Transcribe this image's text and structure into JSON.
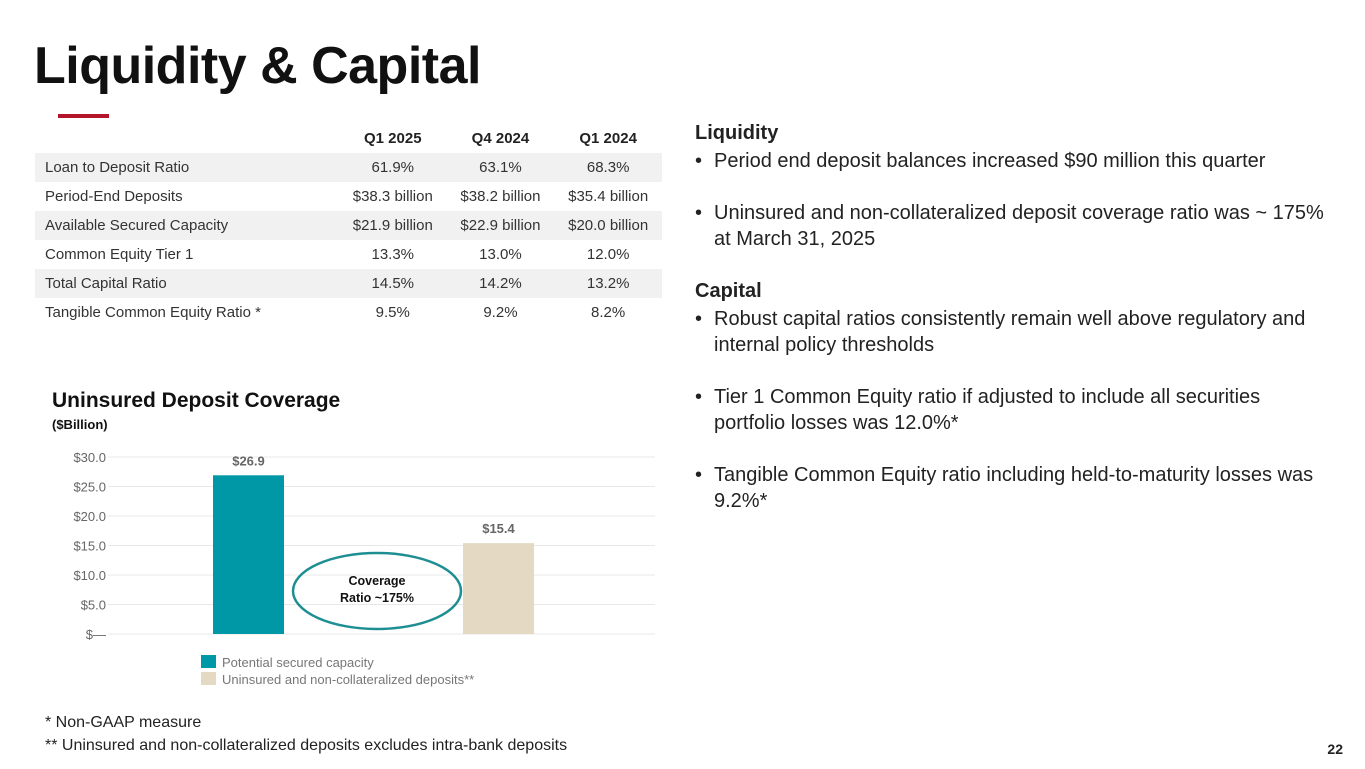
{
  "title": "Liquidity & Capital",
  "table": {
    "headers": [
      "",
      "Q1 2025",
      "Q4 2024",
      "Q1 2024"
    ],
    "rows": [
      [
        "Loan to Deposit Ratio",
        "61.9%",
        "63.1%",
        "68.3%"
      ],
      [
        "Period-End Deposits",
        "$38.3 billion",
        "$38.2 billion",
        "$35.4 billion"
      ],
      [
        "Available Secured Capacity",
        "$21.9 billion",
        "$22.9 billion",
        "$20.0 billion"
      ],
      [
        "Common Equity Tier 1",
        "13.3%",
        "13.0%",
        "12.0%"
      ],
      [
        "Total Capital Ratio",
        "14.5%",
        "14.2%",
        "13.2%"
      ],
      [
        "Tangible Common Equity Ratio *",
        "9.5%",
        "9.2%",
        "8.2%"
      ]
    ]
  },
  "right": {
    "liquidity_heading": "Liquidity",
    "liquidity_bullets": [
      "Period end deposit balances increased $90 million this quarter",
      "Uninsured and non-collateralized deposit coverage ratio was ~ 175% at March 31, 2025"
    ],
    "capital_heading": "Capital",
    "capital_bullets": [
      "Robust capital ratios consistently remain well above regulatory and internal policy thresholds",
      "Tier 1 Common Equity ratio if adjusted to include all securities portfolio losses was 12.0%*",
      "Tangible Common Equity ratio including held-to-maturity losses was 9.2%*"
    ]
  },
  "chart_data": {
    "type": "bar",
    "title": "Uninsured Deposit Coverage",
    "unit": "($Billion)",
    "categories": [
      "Potential secured capacity",
      "Uninsured and non-collateralized deposits**"
    ],
    "values": [
      26.9,
      15.4
    ],
    "value_labels": [
      "$26.9",
      "$15.4"
    ],
    "colors": [
      "#0097a7",
      "#e4d9c3"
    ],
    "ylim": [
      0,
      30
    ],
    "yticks": [
      0,
      5,
      10,
      15,
      20,
      25,
      30
    ],
    "ytick_labels": [
      "$—",
      "$5.0",
      "$10.0",
      "$15.0",
      "$20.0",
      "$25.0",
      "$30.0"
    ],
    "annotation": [
      "Coverage",
      "Ratio ~175%"
    ],
    "legend_position": "bottom",
    "grid": true
  },
  "footnotes": [
    "*   Non-GAAP measure",
    "** Uninsured and non-collateralized deposits excludes intra-bank deposits"
  ],
  "page_number": "22"
}
